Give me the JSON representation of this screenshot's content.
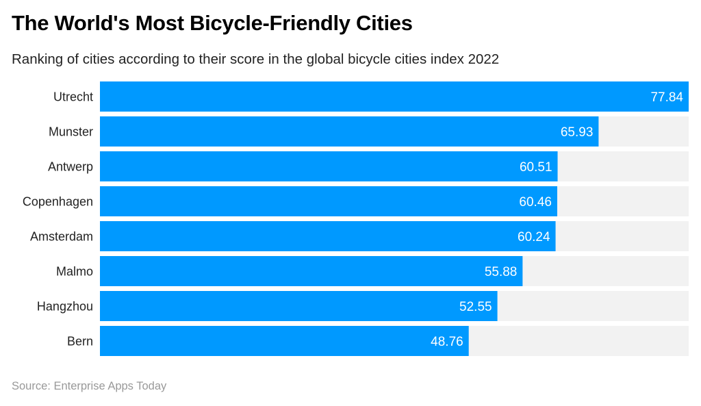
{
  "chart_data": {
    "type": "bar",
    "orientation": "horizontal",
    "title": "The World's Most Bicycle-Friendly Cities",
    "subtitle": "Ranking of cities according to their score in the global bicycle cities index 2022",
    "source": "Source: Enterprise Apps Today",
    "categories": [
      "Utrecht",
      "Munster",
      "Antwerp",
      "Copenhagen",
      "Amsterdam",
      "Malmo",
      "Hangzhou",
      "Bern"
    ],
    "values": [
      77.84,
      65.93,
      60.51,
      60.46,
      60.24,
      55.88,
      52.55,
      48.76
    ],
    "xlim": [
      0,
      77.84
    ],
    "grid": false,
    "data_labels": true,
    "colors": {
      "bar": "#0099ff",
      "track": "#f2f2f2",
      "label": "#ffffff"
    }
  }
}
